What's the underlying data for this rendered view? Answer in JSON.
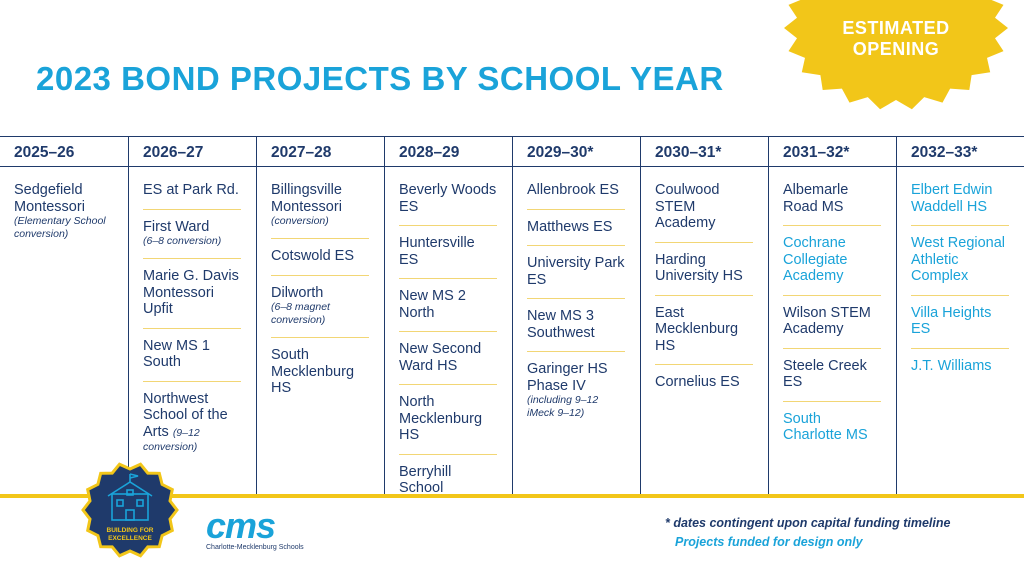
{
  "title": "2023 BOND PROJECTS BY SCHOOL YEAR",
  "badge": {
    "line1": "ESTIMATED",
    "line2": "OPENING",
    "color": "#f2c619"
  },
  "colors": {
    "navy": "#1f3a6b",
    "blue": "#1aa3d9",
    "yellow": "#f2c619"
  },
  "columns": [
    {
      "year": "2025–26",
      "items": [
        {
          "name": "Sedgefield Montessori",
          "note": "(Elementary School conversion)"
        }
      ]
    },
    {
      "year": "2026–27",
      "items": [
        {
          "name": "ES at Park Rd."
        },
        {
          "name": "First Ward",
          "note": "(6–8 conversion)"
        },
        {
          "name": "Marie G. Davis Montessori Upfit"
        },
        {
          "name": "New MS 1 South"
        },
        {
          "name": "Northwest School of the Arts",
          "inline_note": "(9–12",
          "note": "conversion)"
        }
      ]
    },
    {
      "year": "2027–28",
      "items": [
        {
          "name": "Billingsville Montessori",
          "note": "(conversion)"
        },
        {
          "name": "Cotswold ES"
        },
        {
          "name": "Dilworth",
          "note": "(6–8 magnet conversion)"
        },
        {
          "name": "South Mecklenburg HS"
        }
      ]
    },
    {
      "year": "2028–29",
      "items": [
        {
          "name": "Beverly Woods ES"
        },
        {
          "name": "Huntersville ES"
        },
        {
          "name": "New MS 2 North"
        },
        {
          "name": "New Second Ward HS"
        },
        {
          "name": "North Mecklenburg HS"
        },
        {
          "name": "Berryhill School"
        }
      ]
    },
    {
      "year": "2029–30*",
      "items": [
        {
          "name": "Allenbrook ES"
        },
        {
          "name": "Matthews ES"
        },
        {
          "name": "University Park ES"
        },
        {
          "name": "New MS 3 Southwest"
        },
        {
          "name": "Garinger HS Phase IV",
          "note": "(including 9–12 iMeck 9–12)"
        }
      ]
    },
    {
      "year": "2030–31*",
      "items": [
        {
          "name": "Coulwood STEM Academy"
        },
        {
          "name": "Harding University HS"
        },
        {
          "name": "East Mecklenburg HS"
        },
        {
          "name": "Cornelius ES"
        }
      ]
    },
    {
      "year": "2031–32*",
      "items": [
        {
          "name": "Albemarle Road MS"
        },
        {
          "name": "Cochrane Collegiate Academy",
          "design_only": true
        },
        {
          "name": "Wilson STEM Academy"
        },
        {
          "name": "Steele Creek ES"
        },
        {
          "name": "South Charlotte MS",
          "design_only": true
        }
      ]
    },
    {
      "year": "2032–33*",
      "items": [
        {
          "name": "Elbert Edwin Waddell HS",
          "design_only": true
        },
        {
          "name": "West Regional Athletic Complex",
          "design_only": true
        },
        {
          "name": "Villa Heights ES",
          "design_only": true
        },
        {
          "name": "J.T. Williams",
          "design_only": true
        }
      ]
    }
  ],
  "seal": {
    "line1": "BUILDING FOR",
    "line2": "EXCELLENCE"
  },
  "cms_logo": {
    "word": "cms",
    "subtitle": "Charlotte-Mecklenburg Schools"
  },
  "footnotes": {
    "contingent": "* dates contingent upon capital funding timeline",
    "design_only": "Projects funded for design only"
  }
}
